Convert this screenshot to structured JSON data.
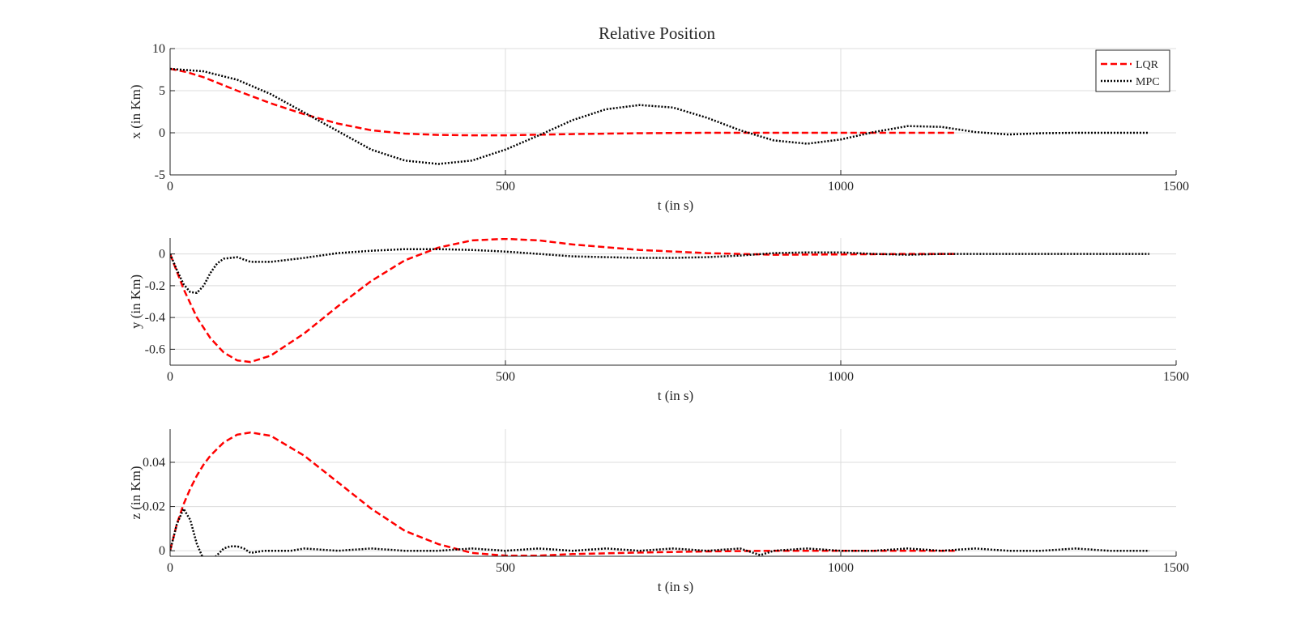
{
  "chart_data": [
    {
      "type": "line",
      "title": "Relative Position",
      "xlabel": "t (in s)",
      "ylabel": "x (in Km)",
      "xlim": [
        0,
        1500
      ],
      "ylim": [
        -5,
        10
      ],
      "xticks": [
        0,
        500,
        1000,
        1500
      ],
      "yticks": [
        -5,
        0,
        5,
        10
      ],
      "xtick_labels": [
        "0",
        "500",
        "1000",
        "1500"
      ],
      "ytick_labels": [
        "-5",
        "0",
        "5",
        "10"
      ],
      "grid": true,
      "legend": {
        "placement": "top-right",
        "entries": [
          "LQR",
          "MPC"
        ]
      },
      "series": [
        {
          "name": "LQR",
          "color": "#ff0000",
          "style": "dashed",
          "x": [
            0,
            25,
            50,
            75,
            100,
            150,
            200,
            250,
            300,
            350,
            400,
            450,
            500,
            600,
            700,
            800,
            900,
            1000,
            1100,
            1170
          ],
          "y": [
            7.6,
            7.2,
            6.6,
            5.8,
            5.0,
            3.5,
            2.2,
            1.1,
            0.3,
            -0.1,
            -0.25,
            -0.3,
            -0.3,
            -0.15,
            -0.05,
            0,
            0,
            0,
            0,
            0
          ]
        },
        {
          "name": "MPC",
          "color": "#000000",
          "style": "dotted",
          "x": [
            0,
            50,
            100,
            150,
            200,
            250,
            300,
            350,
            400,
            450,
            500,
            550,
            600,
            650,
            700,
            750,
            800,
            850,
            900,
            950,
            1000,
            1050,
            1100,
            1150,
            1200,
            1250,
            1300,
            1350,
            1400,
            1460
          ],
          "y": [
            7.6,
            7.3,
            6.3,
            4.6,
            2.4,
            0.2,
            -2.0,
            -3.3,
            -3.7,
            -3.3,
            -2.0,
            -0.3,
            1.5,
            2.8,
            3.3,
            3.0,
            1.8,
            0.3,
            -0.9,
            -1.3,
            -0.8,
            0.1,
            0.8,
            0.7,
            0.1,
            -0.2,
            -0.05,
            0,
            0,
            0
          ]
        }
      ]
    },
    {
      "type": "line",
      "title": "",
      "xlabel": "t (in s)",
      "ylabel": "y (in Km)",
      "xlim": [
        0,
        1500
      ],
      "ylim": [
        -0.7,
        0.1
      ],
      "xticks": [
        0,
        500,
        1000,
        1500
      ],
      "yticks": [
        -0.6,
        -0.4,
        -0.2,
        0
      ],
      "xtick_labels": [
        "0",
        "500",
        "1000",
        "1500"
      ],
      "ytick_labels": [
        "-0.6",
        "-0.4",
        "-0.2",
        "0"
      ],
      "grid": true,
      "series": [
        {
          "name": "LQR",
          "color": "#ff0000",
          "style": "dashed",
          "x": [
            0,
            20,
            40,
            60,
            80,
            100,
            120,
            150,
            200,
            250,
            300,
            350,
            400,
            450,
            500,
            550,
            600,
            700,
            800,
            900,
            1000,
            1100,
            1170
          ],
          "y": [
            0,
            -0.22,
            -0.4,
            -0.53,
            -0.62,
            -0.67,
            -0.68,
            -0.64,
            -0.5,
            -0.33,
            -0.17,
            -0.04,
            0.04,
            0.085,
            0.095,
            0.085,
            0.06,
            0.025,
            0.005,
            -0.005,
            -0.003,
            0,
            0
          ]
        },
        {
          "name": "MPC",
          "color": "#000000",
          "style": "dotted",
          "x": [
            0,
            10,
            20,
            30,
            40,
            50,
            60,
            70,
            80,
            100,
            120,
            150,
            200,
            250,
            300,
            350,
            400,
            450,
            500,
            550,
            600,
            650,
            700,
            750,
            800,
            850,
            900,
            950,
            1000,
            1050,
            1100,
            1150,
            1200,
            1250,
            1300,
            1350,
            1400,
            1460
          ],
          "y": [
            0,
            -0.1,
            -0.19,
            -0.24,
            -0.245,
            -0.2,
            -0.12,
            -0.06,
            -0.03,
            -0.02,
            -0.05,
            -0.05,
            -0.025,
            0.005,
            0.02,
            0.03,
            0.03,
            0.025,
            0.015,
            0.0,
            -0.015,
            -0.02,
            -0.025,
            -0.025,
            -0.02,
            -0.01,
            0.005,
            0.01,
            0.01,
            0.0,
            -0.005,
            0.0,
            0.0,
            0.0,
            0.0,
            0.0,
            0.0,
            0.0
          ]
        }
      ]
    },
    {
      "type": "line",
      "title": "",
      "xlabel": "t (in s)",
      "ylabel": "z (in Km)",
      "xlim": [
        0,
        1500
      ],
      "ylim": [
        -0.0025,
        0.055
      ],
      "xticks": [
        0,
        500,
        1000,
        1500
      ],
      "yticks": [
        0,
        0.02,
        0.04
      ],
      "xtick_labels": [
        "0",
        "500",
        "1000",
        "1500"
      ],
      "ytick_labels": [
        "0",
        "0.02",
        "0.04"
      ],
      "grid": true,
      "series": [
        {
          "name": "LQR",
          "color": "#ff0000",
          "style": "dashed",
          "x": [
            0,
            10,
            20,
            30,
            40,
            50,
            60,
            80,
            100,
            120,
            150,
            200,
            250,
            300,
            350,
            400,
            450,
            500,
            550,
            600,
            700,
            800,
            900,
            1000,
            1100,
            1170
          ],
          "y": [
            0,
            0.012,
            0.021,
            0.028,
            0.034,
            0.039,
            0.043,
            0.049,
            0.0525,
            0.0535,
            0.052,
            0.043,
            0.031,
            0.019,
            0.009,
            0.003,
            -0.001,
            -0.0022,
            -0.0022,
            -0.0015,
            -0.0008,
            -0.0003,
            0,
            0,
            0,
            0
          ]
        },
        {
          "name": "MPC",
          "color": "#000000",
          "style": "dotted",
          "x": [
            0,
            10,
            20,
            30,
            40,
            50,
            60,
            70,
            80,
            90,
            100,
            110,
            120,
            140,
            160,
            180,
            200,
            250,
            300,
            350,
            400,
            450,
            500,
            550,
            600,
            650,
            700,
            750,
            800,
            850,
            880,
            900,
            950,
            1000,
            1050,
            1100,
            1150,
            1200,
            1250,
            1300,
            1350,
            1400,
            1460
          ],
          "y": [
            0,
            0.012,
            0.019,
            0.014,
            0.003,
            -0.004,
            -0.005,
            -0.002,
            0.001,
            0.002,
            0.002,
            0.001,
            -0.001,
            0.0,
            0.0,
            0.0,
            0.001,
            0.0,
            0.001,
            0.0,
            0.0,
            0.001,
            0.0,
            0.001,
            0.0,
            0.001,
            0.0,
            0.001,
            0.0,
            0.001,
            -0.002,
            0.0,
            0.001,
            0.0,
            0.0,
            0.001,
            0.0,
            0.001,
            0.0,
            0.0,
            0.001,
            0.0,
            0.0
          ]
        }
      ]
    }
  ]
}
